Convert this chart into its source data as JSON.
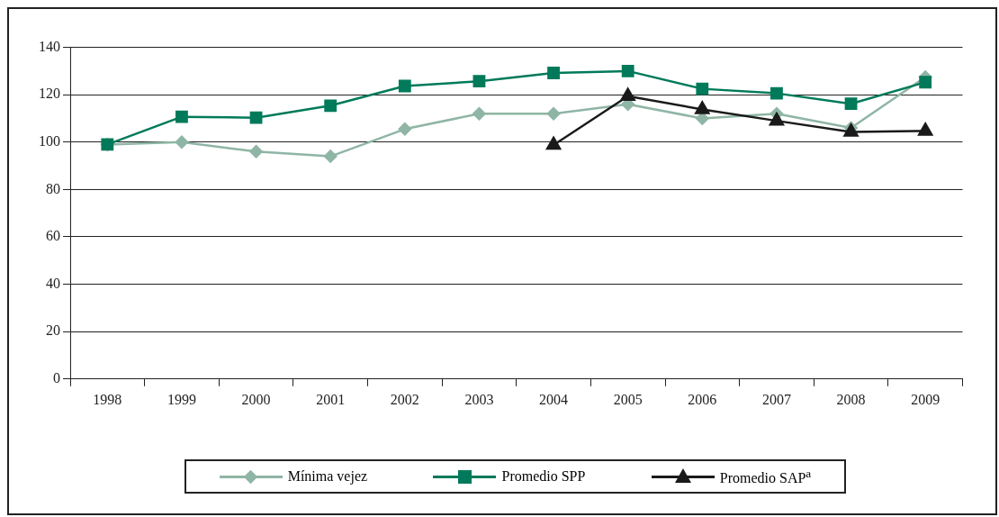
{
  "chart_data": {
    "type": "line",
    "categories": [
      "1998",
      "1999",
      "2000",
      "2001",
      "2002",
      "2003",
      "2004",
      "2005",
      "2006",
      "2007",
      "2008",
      "2009"
    ],
    "ylim": [
      0,
      140
    ],
    "yticks": [
      0,
      20,
      40,
      60,
      80,
      100,
      120,
      140
    ],
    "grid": "y",
    "legend": "bottom",
    "line_style": "solid",
    "series": [
      {
        "name": "Mínima vejez",
        "color": "#8fb5a5",
        "marker": "diamond",
        "values": [
          99,
          100,
          96,
          94,
          105.5,
          112,
          112,
          116,
          110,
          112,
          106,
          127.5
        ]
      },
      {
        "name": "Promedio SPP",
        "color": "#007a5a",
        "marker": "square",
        "values": [
          99,
          110.7,
          110.3,
          115.4,
          123.7,
          125.7,
          129.2,
          130,
          122.5,
          120.6,
          116.2,
          125.3
        ]
      },
      {
        "name": "Promedio SAP$^{a}$",
        "color": "#1a1a1a",
        "marker": "triangle",
        "values": [
          null,
          null,
          null,
          null,
          null,
          null,
          98.8,
          119.4,
          113.8,
          109,
          104.3,
          104.7
        ]
      }
    ]
  }
}
